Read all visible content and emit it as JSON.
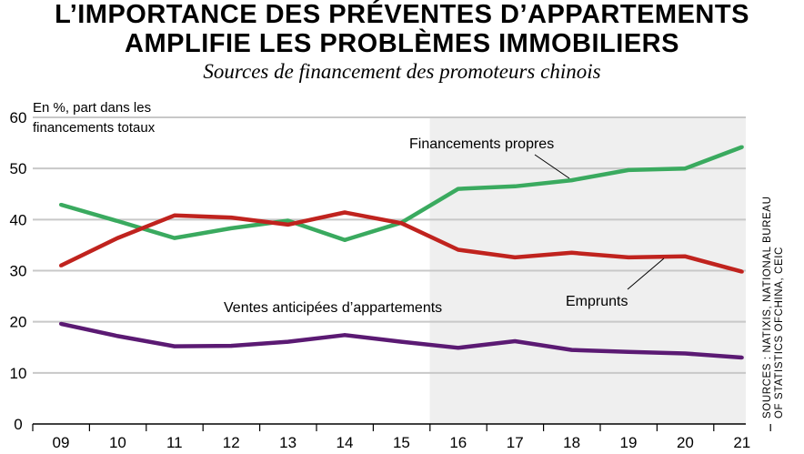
{
  "title_line1": "L’IMPORTANCE DES PRÉVENTES D’APPARTEMENTS",
  "title_line2": "AMPLIFIE LES PROBLÈMES IMMOBILIERS",
  "subtitle": "Sources de financement des promoteurs chinois",
  "unit_line1": "En %, part dans les",
  "unit_line2": "financements totaux",
  "sources_line1": "SOURCES : NATIXIS, NATIONAL BUREAU",
  "sources_line2": "OF STATISTICS OFCHINA, CEIC",
  "colors": {
    "green": "#3aaa5f",
    "red": "#c0231e",
    "purple": "#5b1a73",
    "shade": "#efefef",
    "grid": "#c8c8c8"
  },
  "chart_data": {
    "type": "line",
    "categories": [
      "09",
      "10",
      "11",
      "12",
      "13",
      "14",
      "15",
      "16",
      "17",
      "18",
      "19",
      "20",
      "21"
    ],
    "ylim": [
      0,
      60
    ],
    "yticks": [
      0,
      10,
      20,
      30,
      40,
      50,
      60
    ],
    "grid": true,
    "shaded_range": [
      "15.5",
      "21"
    ],
    "series": [
      {
        "name": "Financements propres",
        "color": "#3aaa5f",
        "values": [
          42.9,
          39.7,
          36.4,
          38.3,
          39.8,
          36.0,
          39.4,
          46.0,
          46.5,
          47.7,
          49.7,
          50.0,
          54.2
        ]
      },
      {
        "name": "Emprunts",
        "color": "#c0231e",
        "values": [
          31.0,
          36.4,
          40.8,
          40.4,
          39.0,
          41.4,
          39.3,
          34.1,
          32.6,
          33.5,
          32.6,
          32.8,
          29.8
        ]
      },
      {
        "name": "Ventes anticipées d’appartements",
        "color": "#5b1a73",
        "values": [
          19.6,
          17.2,
          15.2,
          15.3,
          16.1,
          17.4,
          16.1,
          14.9,
          16.2,
          14.5,
          14.1,
          13.8,
          13.0
        ]
      }
    ]
  }
}
